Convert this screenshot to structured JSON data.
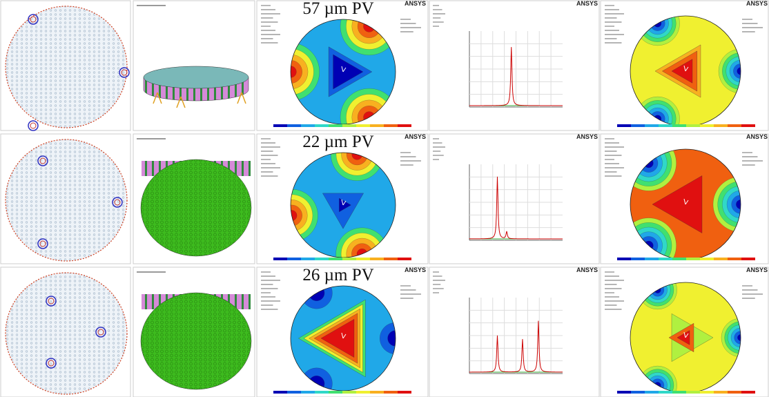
{
  "rows": [
    {
      "title": "57 µm PV",
      "brand": [
        "ANSYS",
        "ANSYS",
        "ANSYS"
      ]
    },
    {
      "title": "22 µm PV",
      "brand": [
        "ANSYS",
        "ANSYS",
        "ANSYS"
      ]
    },
    {
      "title": "26 µm PV",
      "brand": [
        "ANSYS",
        "ANSYS",
        "ANSYS"
      ]
    }
  ]
}
